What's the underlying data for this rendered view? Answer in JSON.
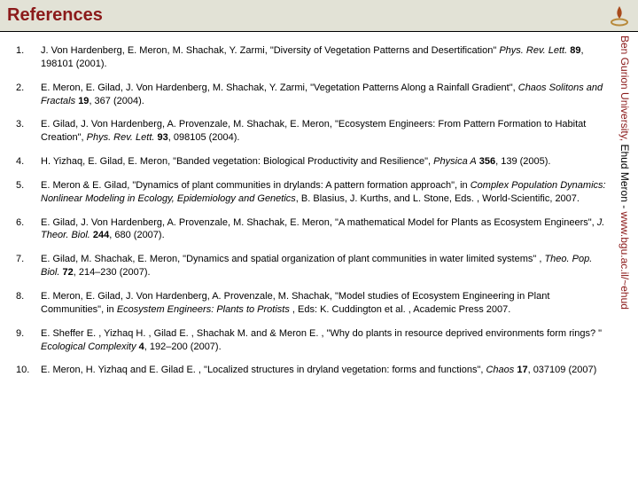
{
  "header": {
    "title": "References",
    "logo_colors": {
      "flame": "#a84a1c",
      "ring": "#b88a3c"
    }
  },
  "sidebar": {
    "part1": "Ben Gurion University, ",
    "part2": "Ehud Meron - ",
    "part3": "www.bgu.ac.il/~ehud"
  },
  "references": [
    {
      "num": "1.",
      "html": "J. Von Hardenberg, E. Meron, M. Shachak, Y. Zarmi, \"Diversity of Vegetation Patterns and Desertification\" <i>Phys. Rev. Lett.</i> <b>89</b>, 198101 (2001)."
    },
    {
      "num": "2.",
      "html": "E. Meron, E. Gilad, J. Von Hardenberg, M. Shachak, Y. Zarmi, \"Vegetation Patterns Along a Rainfall Gradient\", <i>Chaos Solitons and Fractals</i> <b>19</b>, 367 (2004)."
    },
    {
      "num": "3.",
      "html": "E. Gilad, J. Von Hardenberg, A. Provenzale, M. Shachak, E. Meron, \"Ecosystem Engineers: From Pattern Formation to Habitat Creation\", <i>Phys. Rev. Lett.</i> <b>93</b>, 098105 (2004)."
    },
    {
      "num": "4.",
      "html": "H. Yizhaq, E. Gilad, E. Meron, \"Banded vegetation: Biological Productivity and Resilience\", <i>Physica A</i> <b>356</b>, 139 (2005)."
    },
    {
      "num": "5.",
      "html": "E. Meron & E. Gilad, \"Dynamics of plant communities in drylands: A pattern formation approach\", in <i>Complex Population Dynamics: Nonlinear Modeling in Ecology, Epidemiology and Genetics</i>, B. Blasius, J. Kurths, and L. Stone, Eds. , World-Scientific, 2007."
    },
    {
      "num": "6.",
      "html": "E. Gilad, J. Von Hardenberg, A. Provenzale, M. Shachak, E. Meron, \"A mathematical Model for Plants as Ecosystem Engineers\", <i>J. Theor. Biol.</i> <b>244</b>, 680 (2007)."
    },
    {
      "num": "7.",
      "html": "E. Gilad, M. Shachak, E. Meron, \"Dynamics and spatial organization of plant communities in water limited systems\" , <i>Theo. Pop. Biol.</i> <b>72</b>, 214–230 (2007)."
    },
    {
      "num": "8.",
      "html": "E. Meron, E. Gilad, J. Von Hardenberg, A. Provenzale, M. Shachak, \"Model studies of Ecosystem Engineering in Plant Communities\", in <i>Ecosystem Engineers: Plants to Protists</i> , Eds: K. Cuddington et al. , Academic Press 2007."
    },
    {
      "num": "9.",
      "html": "E. Sheffer E. , Yizhaq H. , Gilad E. , Shachak M. and & Meron E. , \"Why do plants in resource deprived environments form rings? \" <i>Ecological Complexity</i> <b>4</b>, 192–200 (2007)."
    },
    {
      "num": "10.",
      "html": "E. Meron, H. Yizhaq and E. Gilad E. , \"Localized structures in dryland vegetation: forms and functions\", <i>Chaos</i> <b>17</b>, 037109 (2007)"
    }
  ]
}
